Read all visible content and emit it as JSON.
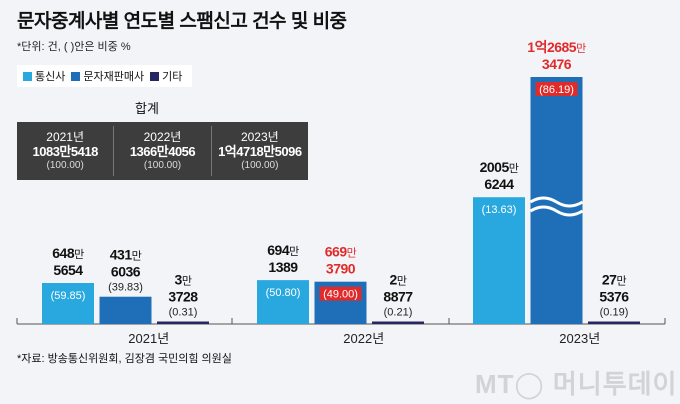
{
  "title": "문자중계사별 연도별 스팸신고 건수 및 비중",
  "unit": "*단위: 건, ( )안은 비중 %",
  "source": "*자료: 방송통신위원회, 김장겸 국민의힘 의원실",
  "logo": "MT 머니투데이",
  "colors": {
    "telecom": "#29a8e0",
    "reseller": "#1e6fb8",
    "other": "#262663",
    "highlight": "#e02b2b",
    "table": "#3d3d3d"
  },
  "summary": {
    "title": "합계",
    "rows": [
      {
        "year": "2021년",
        "total": "1083만5418",
        "pct": "(100.00)"
      },
      {
        "year": "2022년",
        "total": "1366만4056",
        "pct": "(100.00)"
      },
      {
        "year": "2023년",
        "total": "1억4718만5096",
        "pct": "(100.00)"
      }
    ]
  },
  "chart_data": {
    "type": "bar",
    "title": "문자중계사별 연도별 스팸신고 건수 및 비중",
    "categories": [
      "2021년",
      "2022년",
      "2023년"
    ],
    "axis_break": true,
    "legend_position": "top-left",
    "series": [
      {
        "name": "통신사",
        "values": [
          6485654,
          6941389,
          20056244
        ],
        "labels": [
          [
            "648만",
            "5654"
          ],
          [
            "694만",
            "1389"
          ],
          [
            "2005만",
            "6244"
          ]
        ],
        "pct": [
          "(59.85)",
          "(50.80)",
          "(13.63)"
        ],
        "highlight": [
          false,
          false,
          false
        ]
      },
      {
        "name": "문자재판매사",
        "values": [
          4316036,
          6693790,
          126853476
        ],
        "labels": [
          [
            "431만",
            "6036"
          ],
          [
            "669만",
            "3790"
          ],
          [
            "1억2685만",
            "3476"
          ]
        ],
        "pct": [
          "(39.83)",
          "(49.00)",
          "(86.19)"
        ],
        "highlight": [
          false,
          true,
          true
        ]
      },
      {
        "name": "기타",
        "values": [
          33728,
          28877,
          275376
        ],
        "labels": [
          [
            "3만",
            "3728"
          ],
          [
            "2만",
            "8877"
          ],
          [
            "27만",
            "5376"
          ]
        ],
        "pct": [
          "(0.31)",
          "(0.21)",
          "(0.19)"
        ],
        "highlight": [
          false,
          false,
          false
        ]
      }
    ]
  }
}
